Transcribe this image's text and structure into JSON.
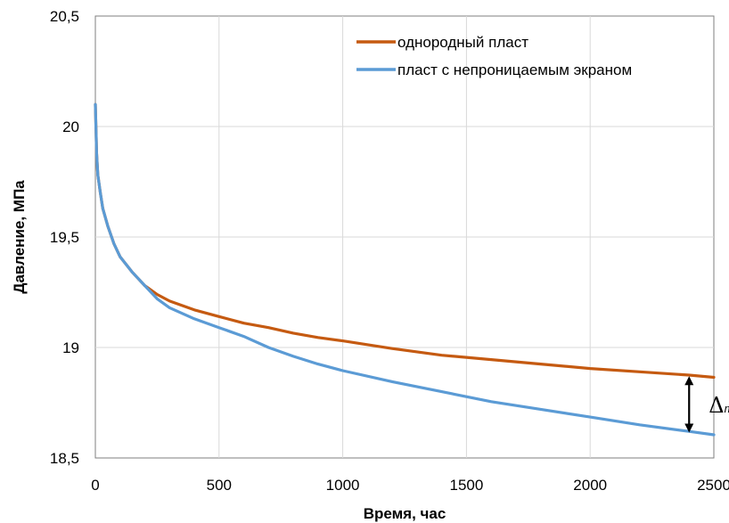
{
  "chart_data": {
    "type": "line",
    "xlabel": "Время, час",
    "ylabel": "Давление, МПа",
    "xlim": [
      0,
      2500
    ],
    "ylim": [
      18.5,
      20.5
    ],
    "x_ticks": [
      "0",
      "500",
      "1000",
      "1500",
      "2000",
      "2500"
    ],
    "y_ticks": [
      "18,5",
      "19",
      "19,5",
      "20",
      "20,5"
    ],
    "grid": true,
    "legend_position": "top-right",
    "series": [
      {
        "name": "однородный пласт",
        "color": "#c55a11",
        "x": [
          0,
          5,
          10,
          20,
          30,
          50,
          75,
          100,
          150,
          200,
          250,
          300,
          400,
          500,
          600,
          700,
          800,
          900,
          1000,
          1200,
          1400,
          1600,
          1800,
          2000,
          2200,
          2400,
          2500
        ],
        "y": [
          20.1,
          19.88,
          19.78,
          19.7,
          19.63,
          19.55,
          19.47,
          19.41,
          19.34,
          19.28,
          19.24,
          19.21,
          19.17,
          19.14,
          19.11,
          19.09,
          19.065,
          19.045,
          19.03,
          18.995,
          18.965,
          18.945,
          18.925,
          18.905,
          18.89,
          18.875,
          18.865
        ]
      },
      {
        "name": "пласт с непроницаемым экраном",
        "color": "#5b9bd5",
        "x": [
          0,
          5,
          10,
          20,
          30,
          50,
          75,
          100,
          150,
          200,
          250,
          300,
          400,
          500,
          600,
          700,
          800,
          900,
          1000,
          1200,
          1400,
          1600,
          1800,
          2000,
          2200,
          2400,
          2500
        ],
        "y": [
          20.1,
          19.88,
          19.78,
          19.7,
          19.63,
          19.55,
          19.47,
          19.41,
          19.34,
          19.28,
          19.22,
          19.18,
          19.13,
          19.09,
          19.05,
          19.0,
          18.96,
          18.925,
          18.895,
          18.845,
          18.8,
          18.755,
          18.72,
          18.685,
          18.65,
          18.62,
          18.605
        ]
      }
    ],
    "annotation": {
      "label": "Δ",
      "subscript": "max",
      "x": 2400,
      "y_top": 18.87,
      "y_bottom": 18.615
    }
  }
}
